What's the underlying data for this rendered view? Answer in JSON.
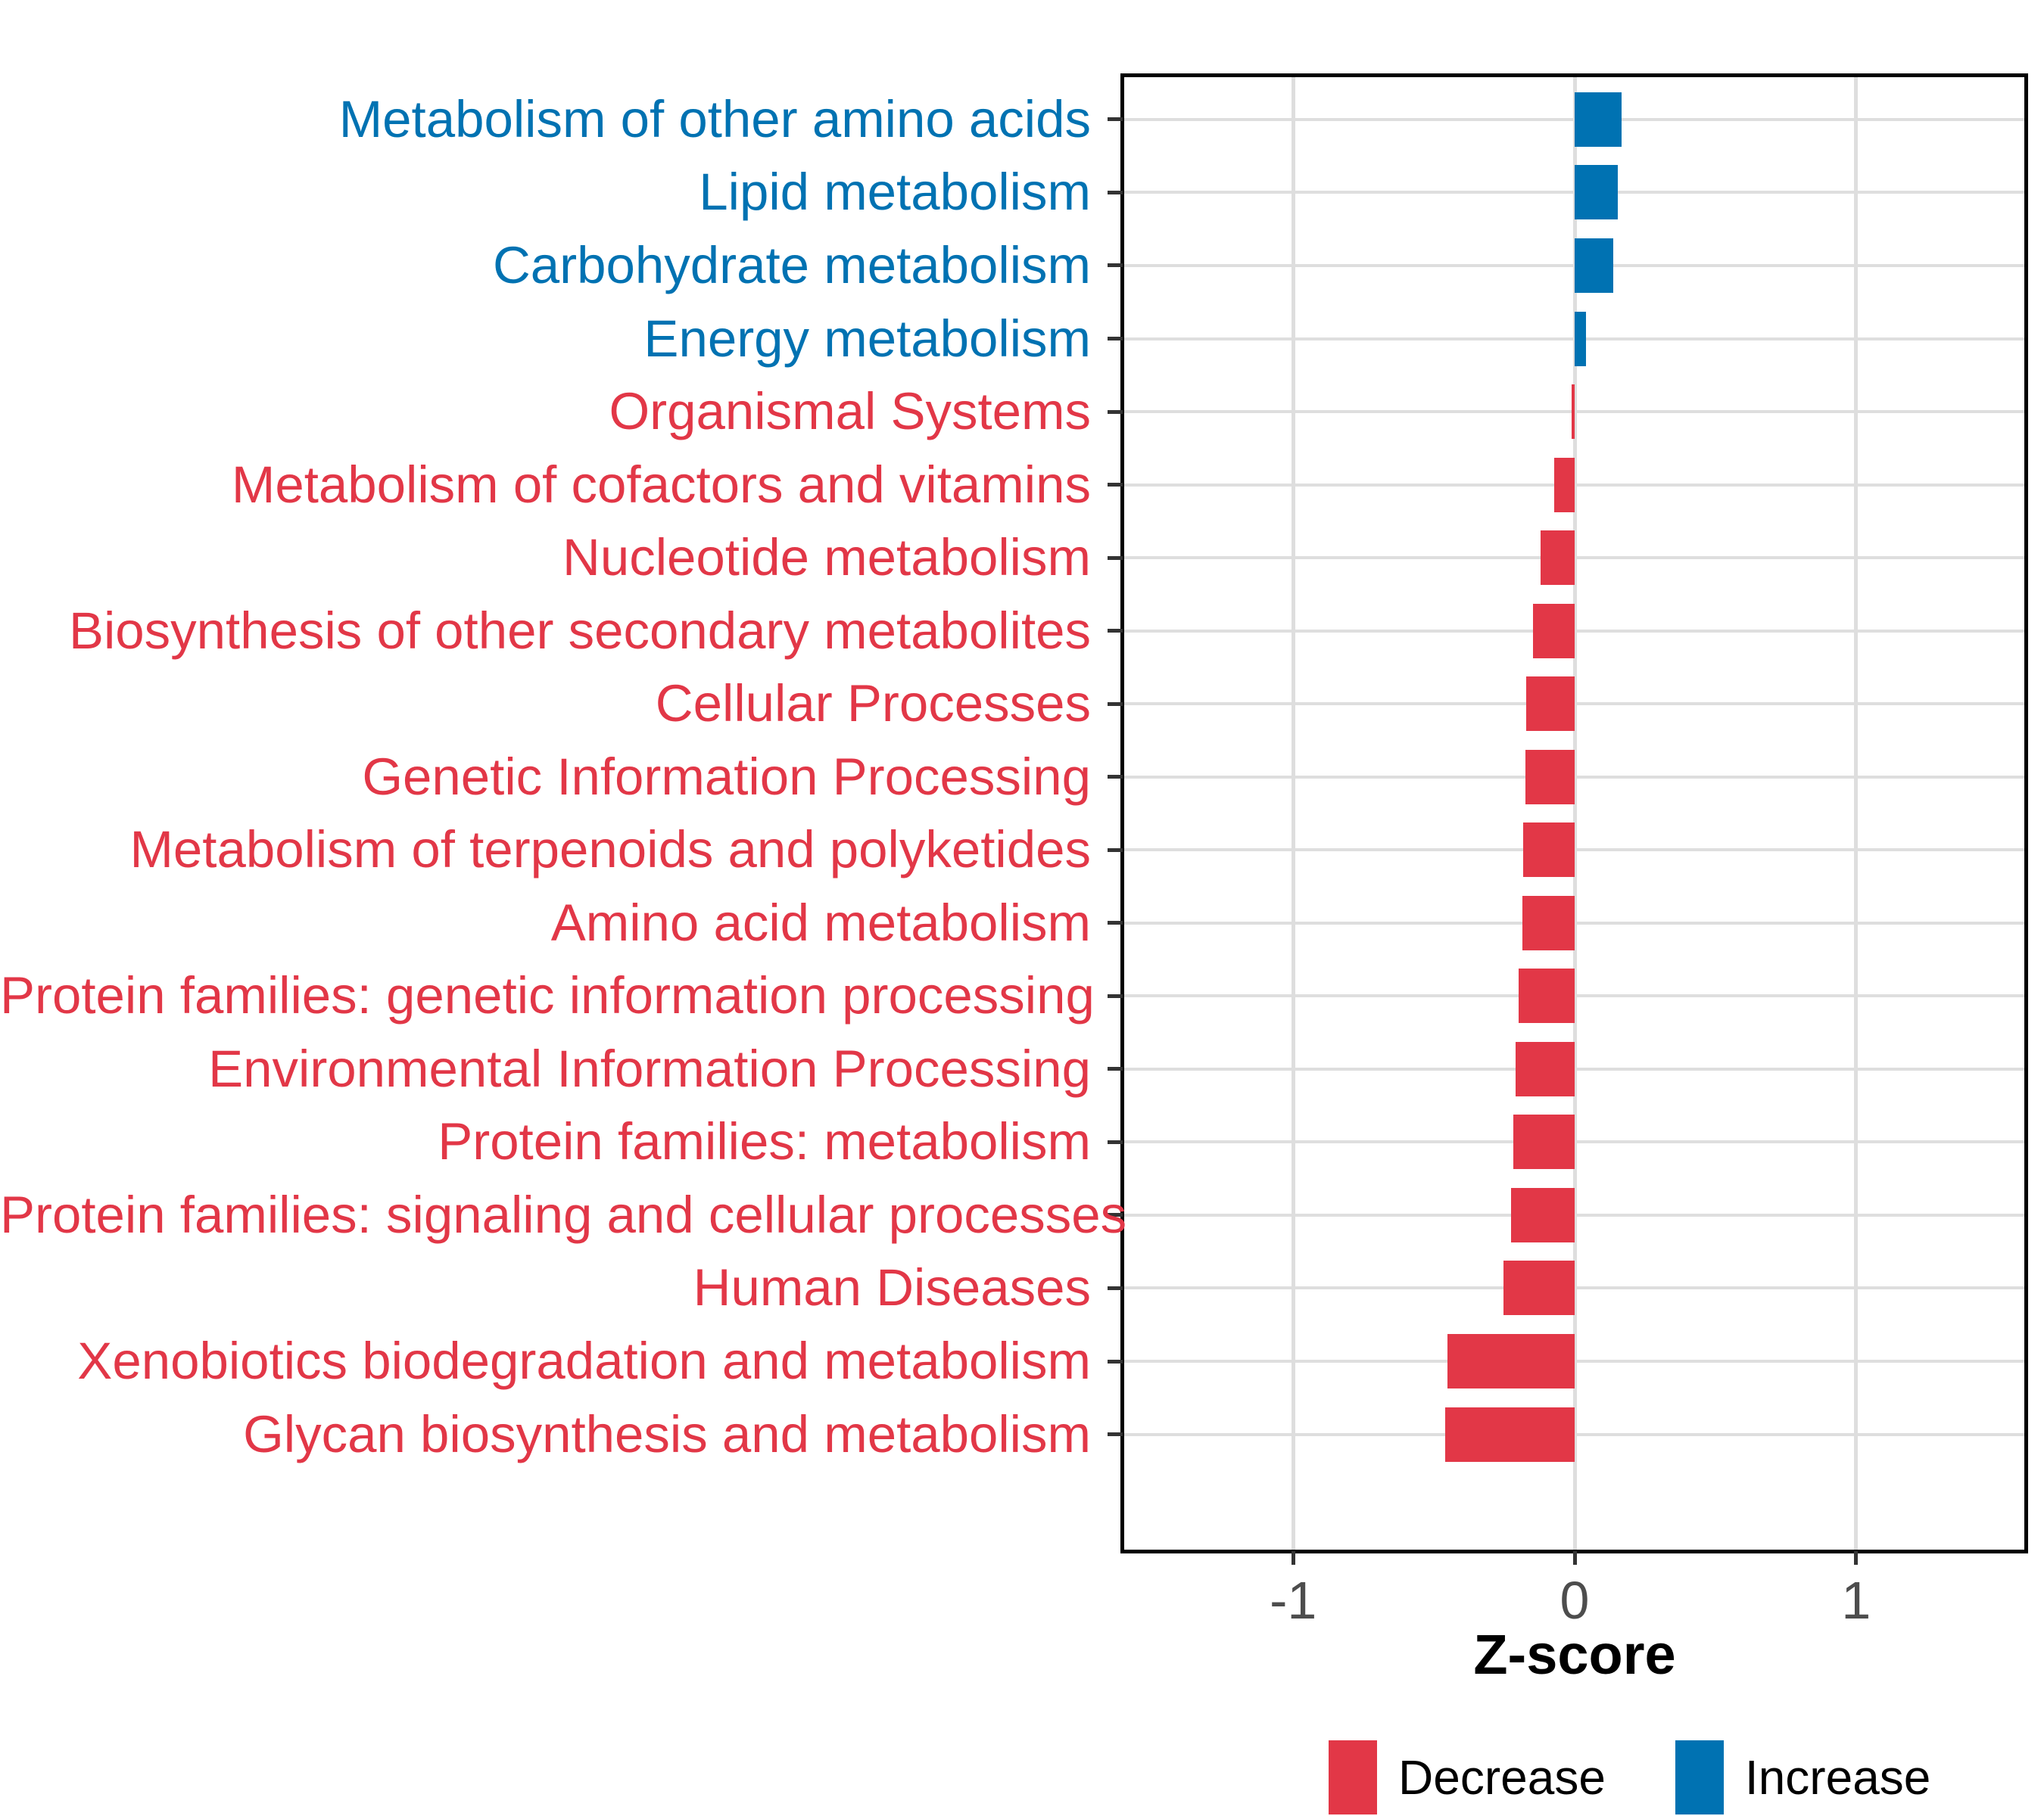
{
  "chart_data": {
    "type": "bar",
    "orientation": "horizontal",
    "xlabel": "Z-score",
    "xlim": [
      -1.6,
      1.6
    ],
    "xticks": [
      -1,
      0,
      1
    ],
    "x_tick_labels": [
      "-1",
      "0",
      "1"
    ],
    "grid": true,
    "bar_colors": {
      "increase": "#0072B2",
      "decrease": "#E23747"
    },
    "legend": {
      "position": "bottom",
      "entries": [
        {
          "label": "Decrease",
          "color": "#E23747",
          "direction": "decrease"
        },
        {
          "label": "Increase",
          "color": "#0072B2",
          "direction": "increase"
        }
      ]
    },
    "categories": [
      "Metabolism of other amino acids",
      "Lipid metabolism",
      "Carbohydrate metabolism",
      "Energy metabolism",
      "Organismal Systems",
      "Metabolism of cofactors and vitamins",
      "Nucleotide metabolism",
      "Biosynthesis of other secondary metabolites",
      "Cellular Processes",
      "Genetic Information Processing",
      "Metabolism of terpenoids and polyketides",
      "Amino acid metabolism",
      "Protein families: genetic information processing",
      "Environmental Information Processing",
      "Protein families: metabolism",
      "Protein families: signaling and cellular processes",
      "Human Diseases",
      "Xenobiotics biodegradation and metabolism",
      "Glycan biosynthesis and metabolism"
    ],
    "values": [
      0.168,
      0.154,
      0.138,
      0.041,
      -0.012,
      -0.073,
      -0.12,
      -0.147,
      -0.171,
      -0.176,
      -0.182,
      -0.185,
      -0.198,
      -0.21,
      -0.217,
      -0.227,
      -0.254,
      -0.453,
      -0.459
    ]
  },
  "colors": {
    "grid": "#DEDEDE",
    "axis_tick_label": "#4D4D4D",
    "axis_title": "#000000",
    "panel_border": "#000000",
    "tick_mark": "#333333",
    "background": "#FFFFFF"
  }
}
